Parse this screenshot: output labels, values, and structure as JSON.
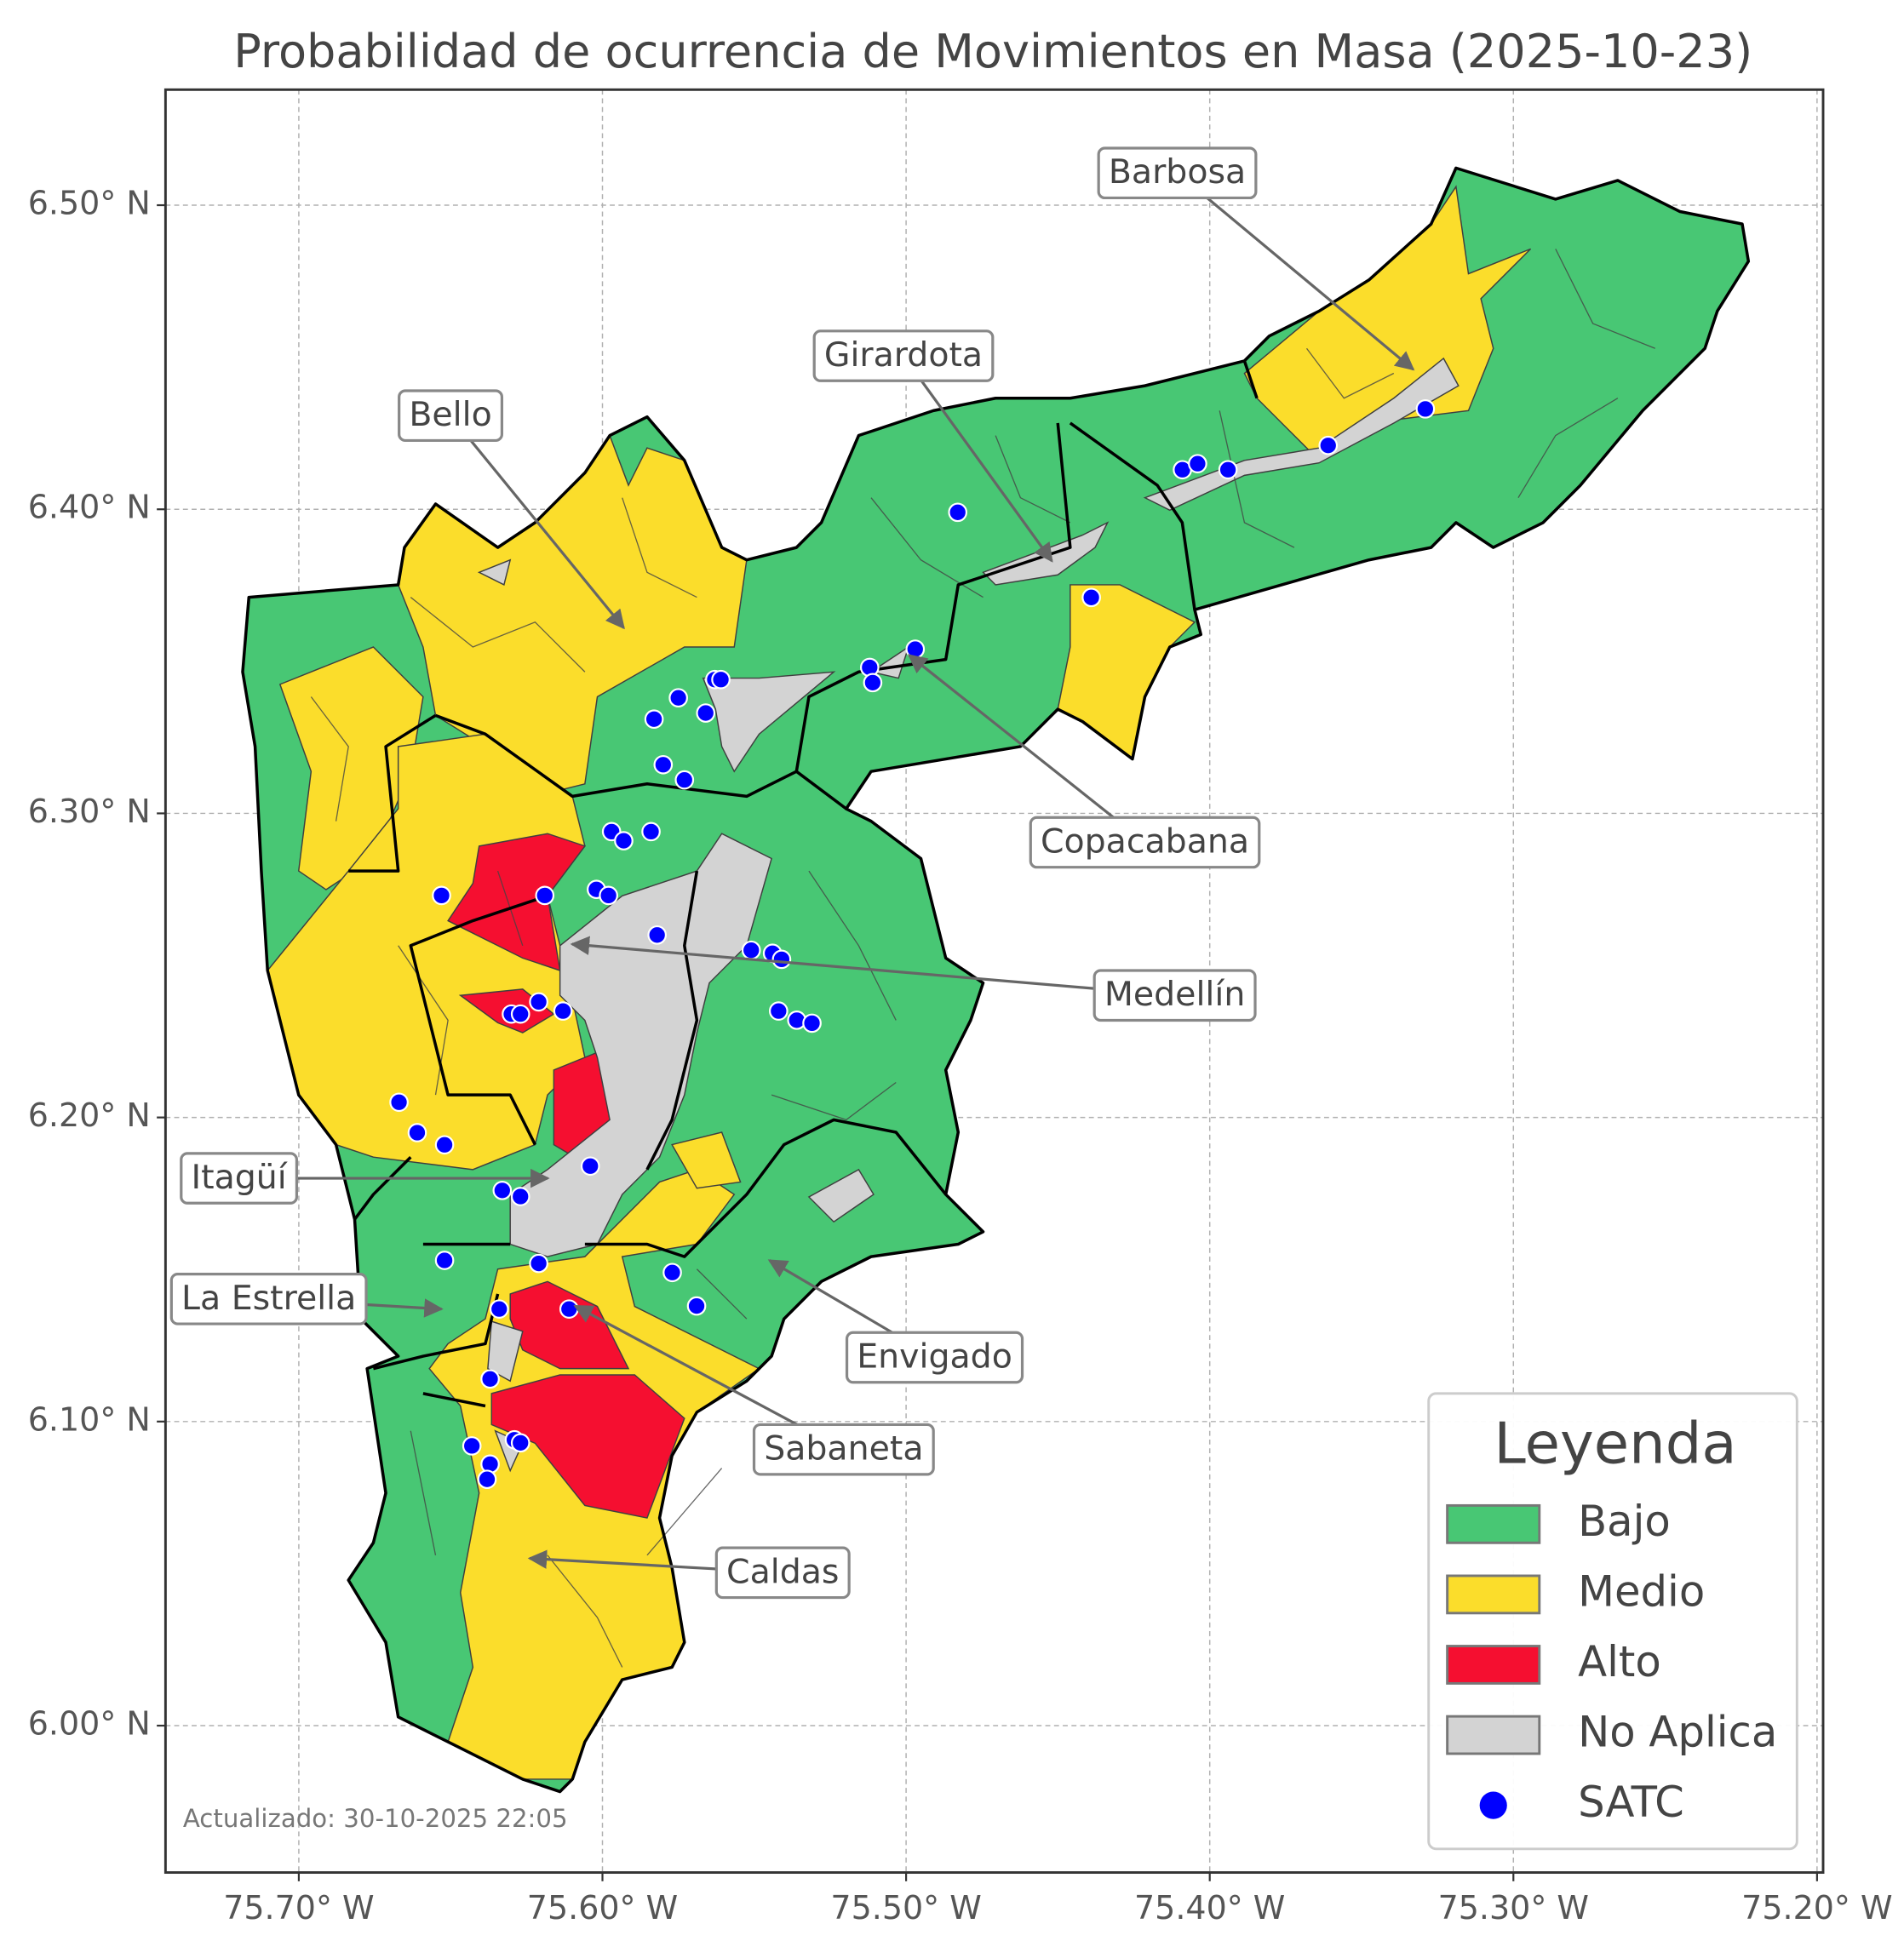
{
  "map": {
    "title": "Probabilidad de ocurrencia de Movimientos en Masa (2025-10-23)",
    "xlim": [
      -75.7439,
      -75.198
    ],
    "ylim": [
      5.9517,
      6.538
    ],
    "grid": true,
    "xticks": [
      {
        "value": -75.7,
        "label": "75.70° W"
      },
      {
        "value": -75.6,
        "label": "75.60° W"
      },
      {
        "value": -75.5,
        "label": "75.50° W"
      },
      {
        "value": -75.4,
        "label": "75.40° W"
      },
      {
        "value": -75.3,
        "label": "75.30° W"
      },
      {
        "value": -75.2,
        "label": "75.20° W"
      }
    ],
    "yticks": [
      {
        "value": 6.0,
        "label": "6.00° N"
      },
      {
        "value": 6.1,
        "label": "6.10° N"
      },
      {
        "value": 6.2,
        "label": "6.20° N"
      },
      {
        "value": 6.3,
        "label": "6.30° N"
      },
      {
        "value": 6.4,
        "label": "6.40° N"
      },
      {
        "value": 6.5,
        "label": "6.50° N"
      }
    ],
    "annotations": [
      {
        "label": "Barbosa",
        "lon": -75.333,
        "lat": 6.446
      },
      {
        "label": "Girardota",
        "lon": -75.452,
        "lat": 6.383
      },
      {
        "label": "Bello",
        "lon": -75.593,
        "lat": 6.361
      },
      {
        "label": "Copacabana",
        "lon": -75.499,
        "lat": 6.352
      },
      {
        "label": "Medellín",
        "lon": -75.61,
        "lat": 6.257
      },
      {
        "label": "Itagüí",
        "lon": -75.618,
        "lat": 6.18
      },
      {
        "label": "La Estrella",
        "lon": -75.653,
        "lat": 6.137
      },
      {
        "label": "Envigado",
        "lon": -75.545,
        "lat": 6.153
      },
      {
        "label": "Sabaneta",
        "lon": -75.609,
        "lat": 6.138
      },
      {
        "label": "Caldas",
        "lon": -75.624,
        "lat": 6.055
      }
    ],
    "legend": {
      "title": "Leyenda",
      "entries": [
        {
          "name": "Bajo",
          "color": "#48c774"
        },
        {
          "name": "Medio",
          "color": "#fbdd2b"
        },
        {
          "name": "Alto",
          "color": "#f50f30"
        },
        {
          "name": "No Aplica",
          "color": "#d3d3d3"
        },
        {
          "name": "SATC",
          "color": "#0000ff"
        }
      ]
    },
    "satc": {
      "lon": [
        -75.329,
        -75.361,
        -75.409,
        -75.404,
        -75.394,
        -75.483,
        -75.439,
        -75.497,
        -75.512,
        -75.511,
        -75.563,
        -75.561,
        -75.575,
        -75.566,
        -75.583,
        -75.58,
        -75.573,
        -75.597,
        -75.593,
        -75.584,
        -75.602,
        -75.598,
        -75.619,
        -75.653,
        -75.582,
        -75.551,
        -75.544,
        -75.541,
        -75.542,
        -75.536,
        -75.531,
        -75.621,
        -75.63,
        -75.627,
        -75.613,
        -75.667,
        -75.661,
        -75.652,
        -75.604,
        -75.633,
        -75.627,
        -75.652,
        -75.621,
        -75.577,
        -75.569,
        -75.634,
        -75.611,
        -75.637,
        -75.643,
        -75.629,
        -75.627,
        -75.637,
        -75.638
      ],
      "lat": [
        6.433,
        6.421,
        6.413,
        6.415,
        6.413,
        6.399,
        6.371,
        6.354,
        6.348,
        6.343,
        6.344,
        6.344,
        6.338,
        6.333,
        6.331,
        6.316,
        6.311,
        6.294,
        6.291,
        6.294,
        6.275,
        6.273,
        6.273,
        6.273,
        6.26,
        6.255,
        6.254,
        6.252,
        6.235,
        6.232,
        6.231,
        6.238,
        6.234,
        6.234,
        6.235,
        6.205,
        6.195,
        6.191,
        6.184,
        6.176,
        6.174,
        6.153,
        6.152,
        6.149,
        6.138,
        6.137,
        6.137,
        6.114,
        6.092,
        6.094,
        6.093,
        6.086,
        6.081
      ]
    },
    "footnote": "Actualizado: 30-10-2025 22:05"
  }
}
